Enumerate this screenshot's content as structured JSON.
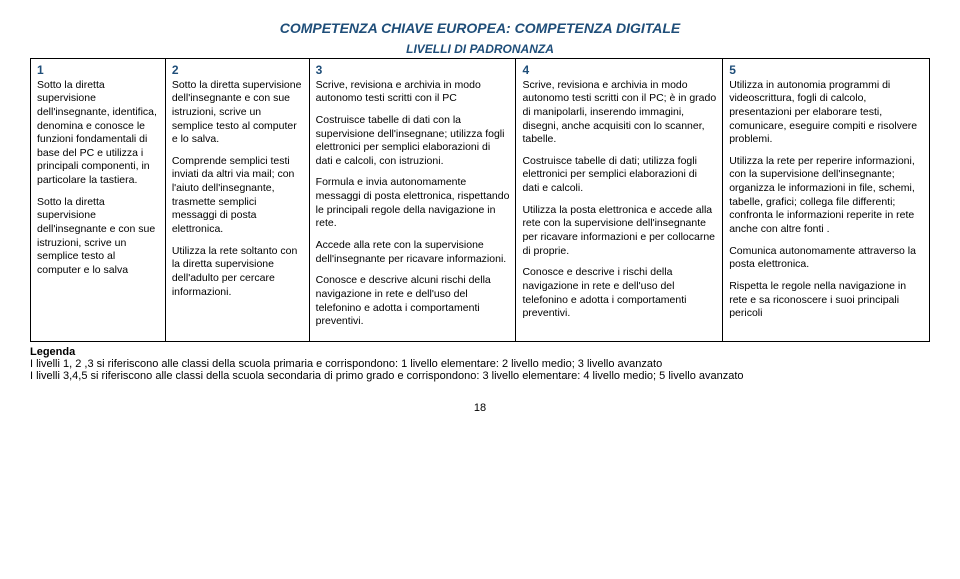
{
  "heading": "COMPETENZA CHIAVE EUROPEA: COMPETENZA DIGITALE",
  "subheading": "LIVELLI DI PADRONANZA",
  "levels": {
    "l1": {
      "num": "1",
      "p1": "Sotto la diretta supervisione dell'insegnante, identifica, denomina e conosce le funzioni fondamentali di base del PC e utilizza i principali componenti, in particolare la tastiera.",
      "p2": "Sotto la diretta supervisione dell'insegnante e con sue istruzioni, scrive un semplice testo al computer e lo salva"
    },
    "l2": {
      "num": "2",
      "p1": "Sotto la diretta supervisione dell'insegnante e con sue istruzioni, scrive un semplice testo al computer e lo salva.",
      "p2": "Comprende semplici testi inviati da altri via mail; con l'aiuto dell'insegnante, trasmette semplici messaggi di posta elettronica.",
      "p3": "Utilizza la rete soltanto con la diretta supervisione dell'adulto per cercare informazioni."
    },
    "l3": {
      "num": "3",
      "p1": "Scrive, revisiona e archivia in modo autonomo testi scritti con il PC",
      "p2": "Costruisce tabelle di dati con la supervisione dell'insegnane; utilizza fogli elettronici per semplici elaborazioni di dati e calcoli, con istruzioni.",
      "p3": "Formula e  invia autonomamente messaggi di posta elettronica, rispettando le principali regole della navigazione in rete.",
      "p4": "Accede alla rete con la supervisione dell'insegnante per ricavare informazioni.",
      "p5": "Conosce e descrive alcuni rischi della navigazione in rete e dell'uso del telefonino e adotta i comportamenti preventivi."
    },
    "l4": {
      "num": "4",
      "p1": "Scrive, revisiona e archivia in modo autonomo testi scritti con il PC; è in grado di manipolarli, inserendo immagini, disegni, anche acquisiti con lo scanner, tabelle.",
      "p2": "Costruisce tabelle di dati; utilizza fogli elettronici per semplici elaborazioni di dati e calcoli.",
      "p3": "Utilizza la posta elettronica e accede alla rete con la supervisione dell'insegnante per ricavare informazioni e per collocarne di proprie.",
      "p4": "Conosce e descrive i rischi della navigazione in rete e dell'uso del telefonino e adotta i comportamenti preventivi."
    },
    "l5": {
      "num": "5",
      "p1": "Utilizza in autonomia programmi di videoscrittura, fogli di calcolo, presentazioni per elaborare testi, comunicare, eseguire compiti e risolvere problemi.",
      "p2": "Utilizza la rete per reperire informazioni, con la supervisione dell'insegnante; organizza le informazioni in file, schemi, tabelle, grafici; collega file differenti; confronta le informazioni reperite in rete anche con altre fonti .",
      "p3": "Comunica autonomamente attraverso la posta elettronica.",
      "p4": "Rispetta le regole nella navigazione in rete e sa riconoscere i suoi principali pericoli"
    }
  },
  "legend": {
    "label": "Legenda",
    "line1": "I livelli 1, 2 ,3 si riferiscono alle classi della scuola primaria e corrispondono: 1 livello elementare: 2 livello medio; 3 livello avanzato",
    "line2": "I livelli 3,4,5 si riferiscono alle classi della scuola secondaria di primo grado e corrispondono: 3  livello elementare: 4 livello medio; 5 livello avanzato"
  },
  "page_number": "18"
}
